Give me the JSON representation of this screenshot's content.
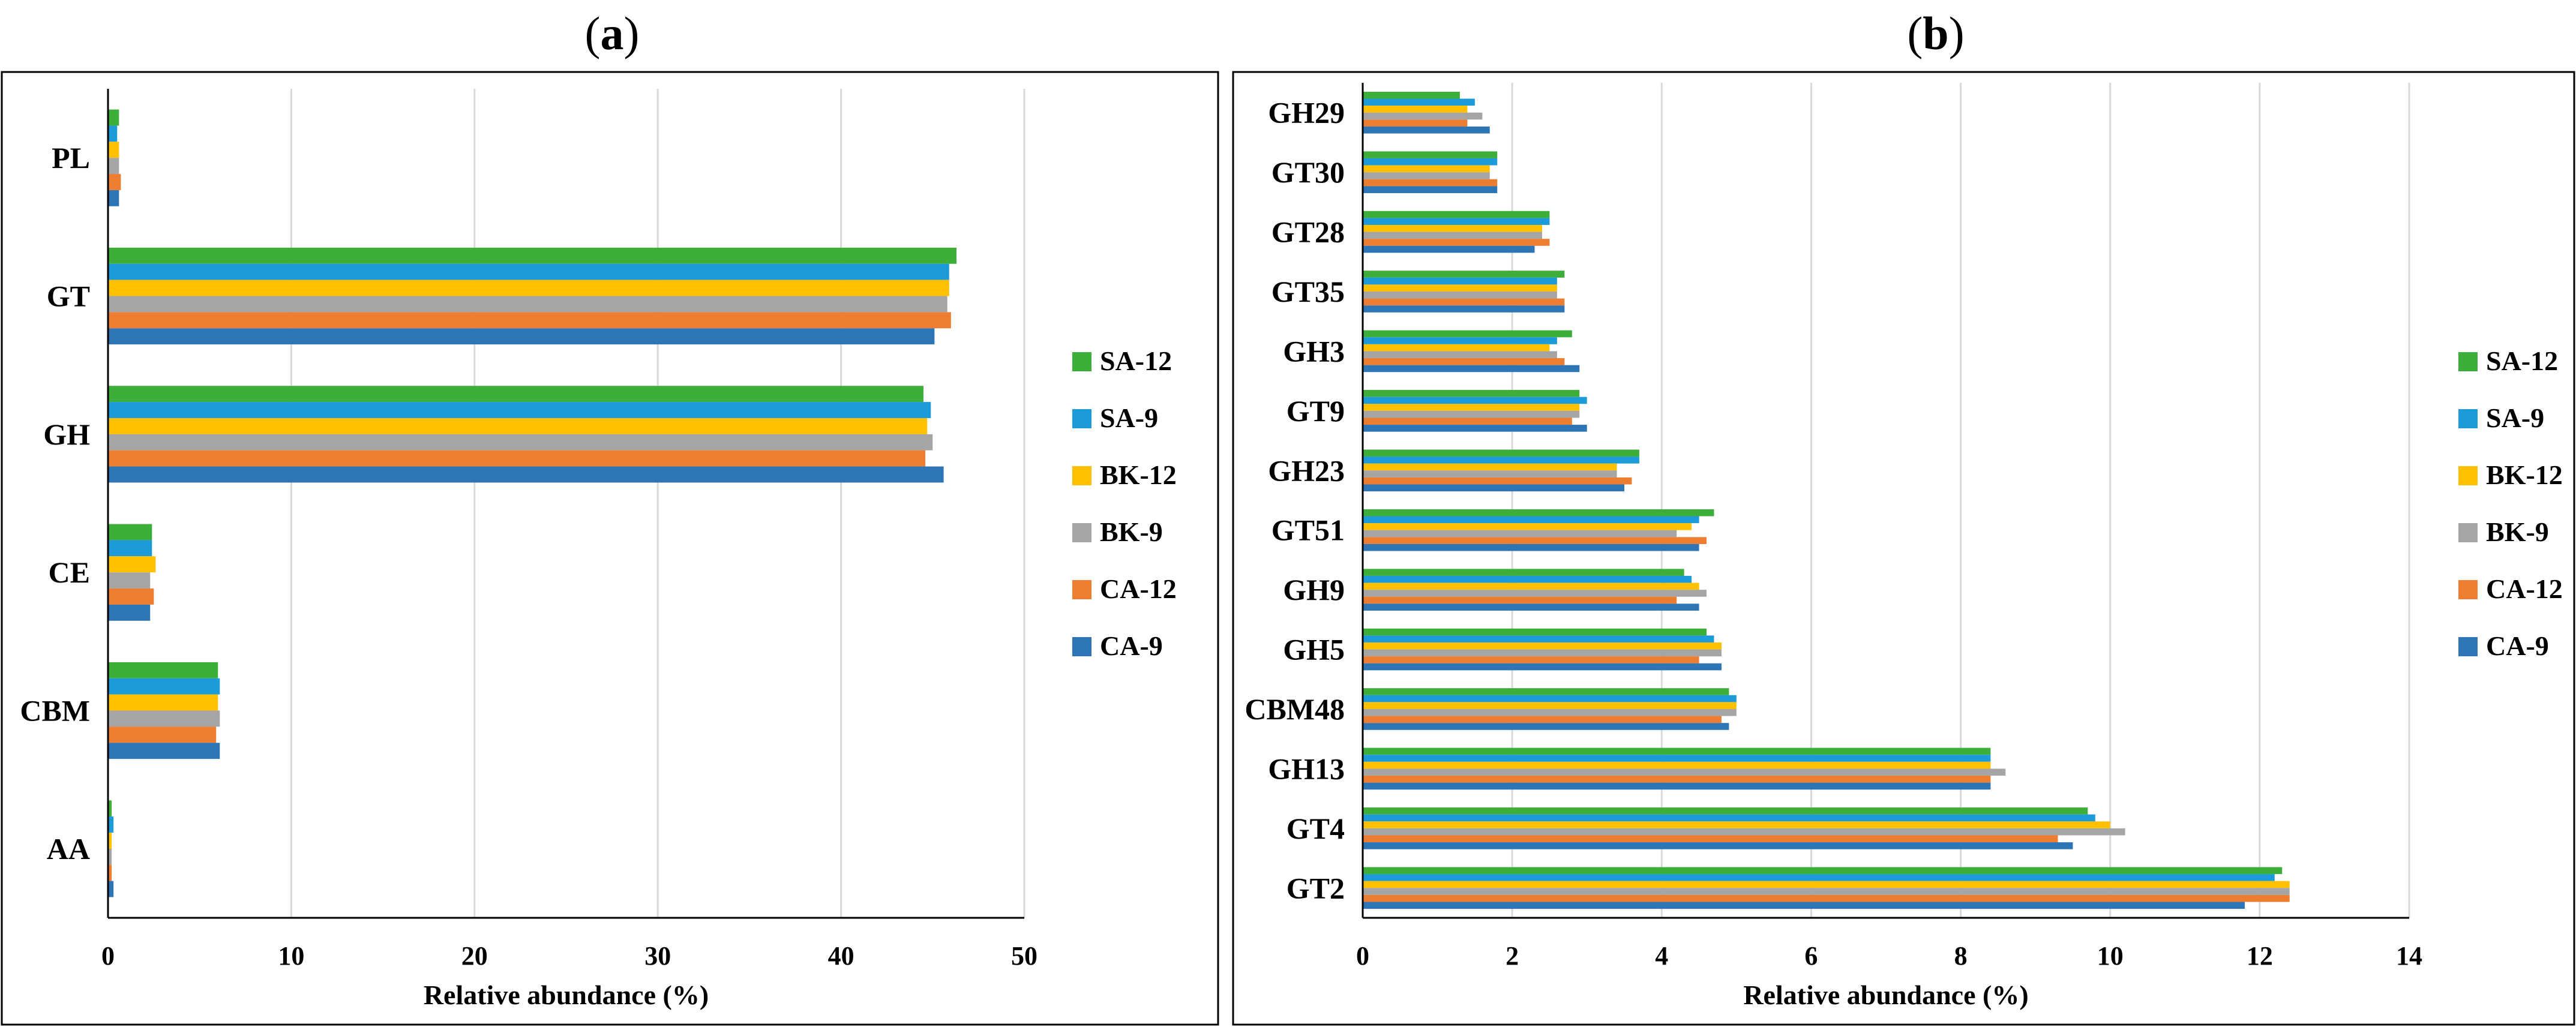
{
  "colors": {
    "SA-12": "#3DAE3A",
    "SA-9": "#1D9BD8",
    "BK-12": "#FFC000",
    "BK-9": "#A5A5A5",
    "CA-12": "#ED7D31",
    "CA-9": "#2E75B6"
  },
  "chart_data": [
    {
      "type": "bar",
      "orientation": "horizontal",
      "panel_label": "a",
      "title_open": "(",
      "title_close": ")",
      "xlabel": "Relative abundance (%)",
      "xlim": [
        0,
        50
      ],
      "xticks": [
        "0",
        "10",
        "20",
        "30",
        "40",
        "50"
      ],
      "grid": true,
      "legend_position": "right",
      "categories": [
        "PL",
        "GT",
        "GH",
        "CE",
        "CBM",
        "AA"
      ],
      "series": [
        {
          "name": "SA-12",
          "values": [
            0.6,
            46.3,
            44.5,
            2.4,
            6.0,
            0.2
          ]
        },
        {
          "name": "SA-9",
          "values": [
            0.5,
            45.9,
            44.9,
            2.4,
            6.1,
            0.3
          ]
        },
        {
          "name": "BK-12",
          "values": [
            0.6,
            45.9,
            44.7,
            2.6,
            6.0,
            0.2
          ]
        },
        {
          "name": "BK-9",
          "values": [
            0.6,
            45.8,
            45.0,
            2.3,
            6.1,
            0.2
          ]
        },
        {
          "name": "CA-12",
          "values": [
            0.7,
            46.0,
            44.6,
            2.5,
            5.9,
            0.2
          ]
        },
        {
          "name": "CA-9",
          "values": [
            0.6,
            45.1,
            45.6,
            2.3,
            6.1,
            0.3
          ]
        }
      ]
    },
    {
      "type": "bar",
      "orientation": "horizontal",
      "panel_label": "b",
      "title_open": "(",
      "title_close": ")",
      "xlabel": "Relative abundance (%)",
      "xlim": [
        0,
        14
      ],
      "xticks": [
        "0",
        "2",
        "4",
        "6",
        "8",
        "10",
        "12",
        "14"
      ],
      "grid": true,
      "legend_position": "right",
      "categories": [
        "GH29",
        "GT30",
        "GT28",
        "GT35",
        "GH3",
        "GT9",
        "GH23",
        "GT51",
        "GH9",
        "GH5",
        "CBM48",
        "GH13",
        "GT4",
        "GT2"
      ],
      "series": [
        {
          "name": "SA-12",
          "values": [
            1.3,
            1.8,
            2.5,
            2.7,
            2.8,
            2.9,
            3.7,
            4.7,
            4.3,
            4.6,
            4.9,
            8.4,
            9.7,
            12.3
          ]
        },
        {
          "name": "SA-9",
          "values": [
            1.5,
            1.8,
            2.5,
            2.6,
            2.6,
            3.0,
            3.7,
            4.5,
            4.4,
            4.7,
            5.0,
            8.4,
            9.8,
            12.2
          ]
        },
        {
          "name": "BK-12",
          "values": [
            1.4,
            1.7,
            2.4,
            2.6,
            2.5,
            2.9,
            3.4,
            4.4,
            4.5,
            4.8,
            5.0,
            8.4,
            10.0,
            12.4
          ]
        },
        {
          "name": "BK-9",
          "values": [
            1.6,
            1.7,
            2.4,
            2.6,
            2.6,
            2.9,
            3.4,
            4.2,
            4.6,
            4.8,
            5.0,
            8.6,
            10.2,
            12.4
          ]
        },
        {
          "name": "CA-12",
          "values": [
            1.4,
            1.8,
            2.5,
            2.7,
            2.7,
            2.8,
            3.6,
            4.6,
            4.2,
            4.5,
            4.8,
            8.4,
            9.3,
            12.4
          ]
        },
        {
          "name": "CA-9",
          "values": [
            1.7,
            1.8,
            2.3,
            2.7,
            2.9,
            3.0,
            3.5,
            4.5,
            4.5,
            4.8,
            4.9,
            8.4,
            9.5,
            11.8
          ]
        }
      ]
    }
  ]
}
